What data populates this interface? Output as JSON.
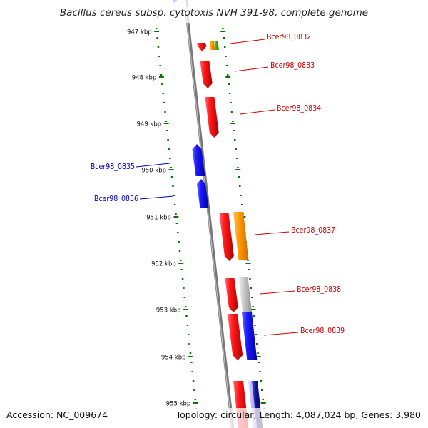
{
  "title": "Bacillus cereus subsp. cytotoxis NVH 391-98, complete genome",
  "footer": {
    "accession": "Accession: NC_009674",
    "topology": "Topology: circular; Length: 4,087,024 bp; Genes: 3,980"
  },
  "colors": {
    "red": "#ee0000",
    "blue": "#0000ee",
    "orange": "#ff9900",
    "green": "#22bb00",
    "gray": "#c0c0c0",
    "navy": "#000080",
    "tick": "#007700",
    "red_label": "#cc0000",
    "blue_label": "#0000cc",
    "backbone": "#888888"
  },
  "kbp_labels": [
    "947 kbp",
    "948 kbp",
    "949 kbp",
    "950 kbp",
    "951 kbp",
    "952 kbp",
    "953 kbp",
    "954 kbp",
    "955 kbp"
  ],
  "gene_labels": [
    {
      "text": "Bcer98_0832",
      "color": "red"
    },
    {
      "text": "Bcer98_0833",
      "color": "red"
    },
    {
      "text": "Bcer98_0834",
      "color": "red"
    },
    {
      "text": "Bcer98_0835",
      "color": "blue"
    },
    {
      "text": "Bcer98_0836",
      "color": "blue"
    },
    {
      "text": "Bcer98_0837",
      "color": "red"
    },
    {
      "text": "Bcer98_0838",
      "color": "red"
    },
    {
      "text": "Bcer98_0839",
      "color": "red"
    }
  ]
}
